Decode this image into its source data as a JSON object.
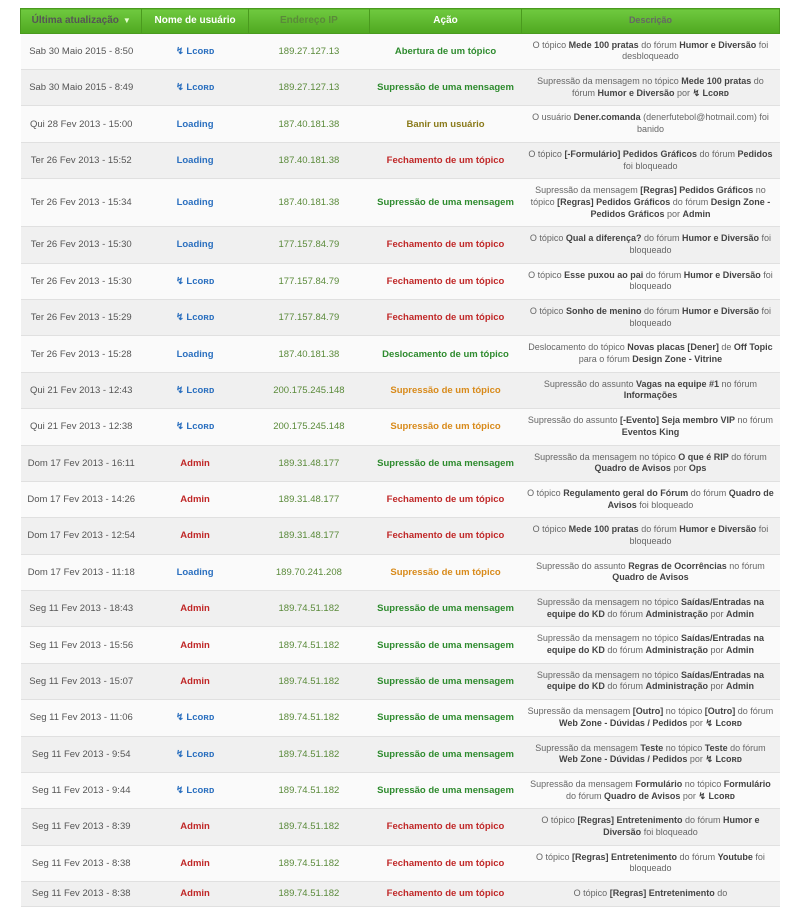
{
  "headers": {
    "date": "Última atualização",
    "user": "Nome de usuário",
    "ip": "Endereço IP",
    "action": "Ação",
    "desc": "Descrição"
  },
  "users": {
    "lcord": "↯ Lᴄᴏʀᴅ",
    "loading": "Loading",
    "admin": "Admin"
  },
  "actions": {
    "abertura": {
      "label": "Abertura de um tópico",
      "cls": "act-green"
    },
    "sup_msg": {
      "label": "Supressão de uma mensagem",
      "cls": "act-green"
    },
    "banir": {
      "label": "Banir um usuário",
      "cls": "act-olive"
    },
    "fechamento": {
      "label": "Fechamento de um tópico",
      "cls": "act-red"
    },
    "desloc": {
      "label": "Deslocamento de um tópico",
      "cls": "act-green"
    },
    "sup_top": {
      "label": "Supressão de um tópico",
      "cls": "act-orange"
    }
  },
  "rows": [
    {
      "date": "Sab 30 Maio 2015 - 8:50",
      "user": "lcord",
      "ip": "189.27.127.13",
      "act": "abertura",
      "desc": "O tópico <b>Mede 100 pratas</b> do fórum <b>Humor e Diversão</b> foi desbloqueado"
    },
    {
      "date": "Sab 30 Maio 2015 - 8:49",
      "user": "lcord",
      "ip": "189.27.127.13",
      "act": "sup_msg",
      "desc": "Supressão da mensagem no tópico <b>Mede 100 pratas</b> do fórum <b>Humor e Diversão</b> por <b>↯ Lᴄᴏʀᴅ</b>"
    },
    {
      "date": "Qui 28 Fev 2013 - 15:00",
      "user": "loading",
      "ip": "187.40.181.38",
      "act": "banir",
      "desc": "O usuário <b>Dener.comanda</b> (denerfutebol@hotmail.com) foi banido"
    },
    {
      "date": "Ter 26 Fev 2013 - 15:52",
      "user": "loading",
      "ip": "187.40.181.38",
      "act": "fechamento",
      "desc": "O tópico <b>[-Formulário] Pedidos Gráficos</b> do fórum <b>Pedidos</b> foi bloqueado"
    },
    {
      "date": "Ter 26 Fev 2013 - 15:34",
      "user": "loading",
      "ip": "187.40.181.38",
      "act": "sup_msg",
      "desc": "Supressão da mensagem <b>[Regras] Pedidos Gráficos</b> no tópico <b>[Regras] Pedidos Gráficos</b> do fórum <b>Design Zone - Pedidos Gráficos</b> por <b>Admin</b>"
    },
    {
      "date": "Ter 26 Fev 2013 - 15:30",
      "user": "loading",
      "ip": "177.157.84.79",
      "act": "fechamento",
      "desc": "O tópico <b>Qual a diferença?</b> do fórum <b>Humor e Diversão</b> foi bloqueado"
    },
    {
      "date": "Ter 26 Fev 2013 - 15:30",
      "user": "lcord",
      "ip": "177.157.84.79",
      "act": "fechamento",
      "desc": "O tópico <b>Esse puxou ao pai</b> do fórum <b>Humor e Diversão</b> foi bloqueado"
    },
    {
      "date": "Ter 26 Fev 2013 - 15:29",
      "user": "lcord",
      "ip": "177.157.84.79",
      "act": "fechamento",
      "desc": "O tópico <b>Sonho de menino</b> do fórum <b>Humor e Diversão</b> foi bloqueado"
    },
    {
      "date": "Ter 26 Fev 2013 - 15:28",
      "user": "loading",
      "ip": "187.40.181.38",
      "act": "desloc",
      "desc": "Deslocamento do tópico <b>Novas placas [Dener]</b> de <b>Off Topic</b> para o fórum <b>Design Zone - Vitrine</b>"
    },
    {
      "date": "Qui 21 Fev 2013 - 12:43",
      "user": "lcord",
      "ip": "200.175.245.148",
      "act": "sup_top",
      "desc": "Supressão do assunto <b>Vagas na equipe #1</b> no fórum <b>Informações</b>"
    },
    {
      "date": "Qui 21 Fev 2013 - 12:38",
      "user": "lcord",
      "ip": "200.175.245.148",
      "act": "sup_top",
      "desc": "Supressão do assunto <b>[-Evento] Seja membro VIP</b> no fórum <b>Eventos King</b>"
    },
    {
      "date": "Dom 17 Fev 2013 - 16:11",
      "user": "admin",
      "ip": "189.31.48.177",
      "act": "sup_msg",
      "desc": "Supressão da mensagem no tópico <b>O que é RIP</b> do fórum <b>Quadro de Avisos</b> por <b>Ops</b>"
    },
    {
      "date": "Dom 17 Fev 2013 - 14:26",
      "user": "admin",
      "ip": "189.31.48.177",
      "act": "fechamento",
      "desc": "O tópico <b>Regulamento geral do Fórum</b> do fórum <b>Quadro de Avisos</b> foi bloqueado"
    },
    {
      "date": "Dom 17 Fev 2013 - 12:54",
      "user": "admin",
      "ip": "189.31.48.177",
      "act": "fechamento",
      "desc": "O tópico <b>Mede 100 pratas</b> do fórum <b>Humor e Diversão</b> foi bloqueado"
    },
    {
      "date": "Dom 17 Fev 2013 - 11:18",
      "user": "loading",
      "ip": "189.70.241.208",
      "act": "sup_top",
      "desc": "Supressão do assunto <b>Regras de Ocorrências</b> no fórum <b>Quadro de Avisos</b>"
    },
    {
      "date": "Seg 11 Fev 2013 - 18:43",
      "user": "admin",
      "ip": "189.74.51.182",
      "act": "sup_msg",
      "desc": "Supressão da mensagem no tópico <b>Saídas/Entradas na equipe do KD</b> do fórum <b>Administração</b> por <b>Admin</b>"
    },
    {
      "date": "Seg 11 Fev 2013 - 15:56",
      "user": "admin",
      "ip": "189.74.51.182",
      "act": "sup_msg",
      "desc": "Supressão da mensagem no tópico <b>Saídas/Entradas na equipe do KD</b> do fórum <b>Administração</b> por <b>Admin</b>"
    },
    {
      "date": "Seg 11 Fev 2013 - 15:07",
      "user": "admin",
      "ip": "189.74.51.182",
      "act": "sup_msg",
      "desc": "Supressão da mensagem no tópico <b>Saídas/Entradas na equipe do KD</b> do fórum <b>Administração</b> por <b>Admin</b>"
    },
    {
      "date": "Seg 11 Fev 2013 - 11:06",
      "user": "lcord",
      "ip": "189.74.51.182",
      "act": "sup_msg",
      "desc": "Supressão da mensagem <b>[Outro]</b> no tópico <b>[Outro]</b> do fórum <b>Web Zone - Dúvidas / Pedidos</b> por <b>↯ Lᴄᴏʀᴅ</b>"
    },
    {
      "date": "Seg 11 Fev 2013 - 9:54",
      "user": "lcord",
      "ip": "189.74.51.182",
      "act": "sup_msg",
      "desc": "Supressão da mensagem <b>Teste</b> no tópico <b>Teste</b> do fórum <b>Web Zone - Dúvidas / Pedidos</b> por <b>↯ Lᴄᴏʀᴅ</b>"
    },
    {
      "date": "Seg 11 Fev 2013 - 9:44",
      "user": "lcord",
      "ip": "189.74.51.182",
      "act": "sup_msg",
      "desc": "Supressão da mensagem <b>Formulário</b> no tópico <b>Formulário</b> do fórum <b>Quadro de Avisos</b> por <b>↯ Lᴄᴏʀᴅ</b>"
    },
    {
      "date": "Seg 11 Fev 2013 - 8:39",
      "user": "admin",
      "ip": "189.74.51.182",
      "act": "fechamento",
      "desc": "O tópico <b>[Regras] Entretenimento</b> do fórum <b>Humor e Diversão</b> foi bloqueado"
    },
    {
      "date": "Seg 11 Fev 2013 - 8:38",
      "user": "admin",
      "ip": "189.74.51.182",
      "act": "fechamento",
      "desc": "O tópico <b>[Regras] Entretenimento</b> do fórum <b>Youtube</b> foi bloqueado"
    },
    {
      "date": "Seg 11 Fev 2013 - 8:38",
      "user": "admin",
      "ip": "189.74.51.182",
      "act": "fechamento",
      "desc": "O tópico <b>[Regras] Entretenimento</b> do"
    }
  ]
}
